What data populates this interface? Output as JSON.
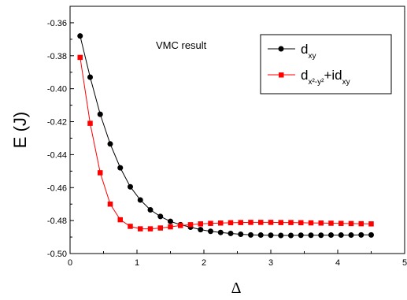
{
  "chart_data": {
    "type": "line",
    "xlabel": "Δ",
    "ylabel": "E (J)",
    "xlim": [
      0,
      5
    ],
    "ylim": [
      -0.5,
      -0.35
    ],
    "x_ticks": [
      "0",
      "1",
      "2",
      "3",
      "4",
      "5"
    ],
    "y_ticks": [
      "-0.50",
      "-0.48",
      "-0.46",
      "-0.44",
      "-0.42",
      "-0.40",
      "-0.38",
      "-0.36"
    ],
    "grid": false,
    "legend_position": "top-right",
    "annotation": "VMC result",
    "series": [
      {
        "name": "d_xy",
        "legend_main": "d",
        "legend_sub": "xy",
        "color": "#000000",
        "marker": "circle",
        "x": [
          0.15,
          0.3,
          0.45,
          0.6,
          0.75,
          0.9,
          1.05,
          1.2,
          1.35,
          1.5,
          1.65,
          1.8,
          1.95,
          2.1,
          2.25,
          2.4,
          2.55,
          2.7,
          2.85,
          3.0,
          3.15,
          3.3,
          3.45,
          3.6,
          3.75,
          3.9,
          4.05,
          4.2,
          4.35,
          4.5
        ],
        "y": [
          -0.368,
          -0.393,
          -0.4155,
          -0.4335,
          -0.448,
          -0.4595,
          -0.4675,
          -0.4735,
          -0.4775,
          -0.4805,
          -0.4825,
          -0.484,
          -0.4855,
          -0.4865,
          -0.4872,
          -0.4878,
          -0.4883,
          -0.4887,
          -0.4888,
          -0.4889,
          -0.489,
          -0.489,
          -0.4889,
          -0.4889,
          -0.4889,
          -0.4888,
          -0.4888,
          -0.4888,
          -0.4887,
          -0.4887
        ]
      },
      {
        "name": "d_x²-y²+id_xy",
        "legend_main": "d",
        "legend_sub": "x²-y²",
        "legend_mid": "+id",
        "legend_sub2": "xy",
        "color": "#ff0000",
        "marker": "square",
        "x": [
          0.15,
          0.3,
          0.45,
          0.6,
          0.75,
          0.9,
          1.05,
          1.2,
          1.35,
          1.5,
          1.65,
          1.8,
          1.95,
          2.1,
          2.25,
          2.4,
          2.55,
          2.7,
          2.85,
          3.0,
          3.15,
          3.3,
          3.45,
          3.6,
          3.75,
          3.9,
          4.05,
          4.2,
          4.35,
          4.5
        ],
        "y": [
          -0.381,
          -0.421,
          -0.451,
          -0.47,
          -0.4795,
          -0.4835,
          -0.485,
          -0.485,
          -0.4845,
          -0.4838,
          -0.483,
          -0.4825,
          -0.482,
          -0.4817,
          -0.4815,
          -0.4813,
          -0.4812,
          -0.4811,
          -0.4811,
          -0.4811,
          -0.4812,
          -0.4812,
          -0.4813,
          -0.4814,
          -0.4815,
          -0.4816,
          -0.4817,
          -0.4818,
          -0.4819,
          -0.482
        ]
      }
    ]
  }
}
